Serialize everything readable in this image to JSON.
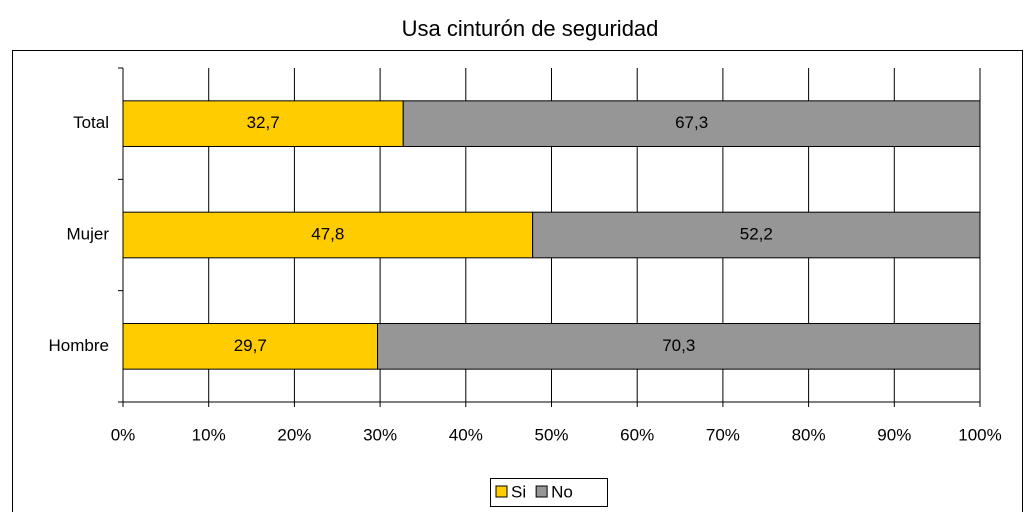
{
  "chart_data": {
    "type": "stacked_bar_horizontal",
    "title": "Usa cinturón de seguridad",
    "categories": [
      "Total",
      "Mujer",
      "Hombre"
    ],
    "series": [
      {
        "name": "Si",
        "color": "#ffcc00",
        "values": [
          32.7,
          47.8,
          29.7
        ],
        "value_labels": [
          "32,7",
          "47,8",
          "29,7"
        ]
      },
      {
        "name": "No",
        "color": "#969696",
        "values": [
          67.3,
          52.2,
          70.3
        ],
        "value_labels": [
          "67,3",
          "52,2",
          "70,3"
        ]
      }
    ],
    "xlim": [
      0,
      100
    ],
    "xticks": [
      {
        "value": 0,
        "label": "0%"
      },
      {
        "value": 10,
        "label": "10%"
      },
      {
        "value": 20,
        "label": "20%"
      },
      {
        "value": 30,
        "label": "30%"
      },
      {
        "value": 40,
        "label": "40%"
      },
      {
        "value": 50,
        "label": "50%"
      },
      {
        "value": 60,
        "label": "60%"
      },
      {
        "value": 70,
        "label": "70%"
      },
      {
        "value": 80,
        "label": "80%"
      },
      {
        "value": 90,
        "label": "90%"
      },
      {
        "value": 100,
        "label": "100%"
      }
    ],
    "grid": true,
    "legend": "bottom"
  }
}
